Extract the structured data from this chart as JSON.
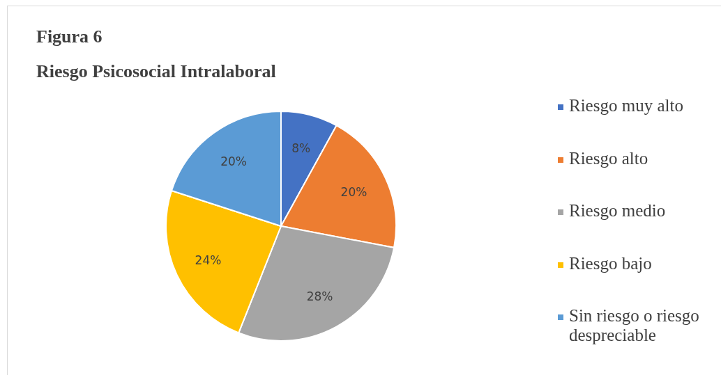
{
  "chart_data": {
    "type": "pie",
    "title": "Figura 6",
    "subtitle": "Riesgo Psicosocial Intralaboral",
    "categories": [
      "Riesgo muy alto",
      "Riesgo alto",
      "Riesgo medio",
      "Riesgo bajo",
      "Sin riesgo o riesgo despreciable"
    ],
    "values": [
      8,
      20,
      28,
      24,
      20
    ],
    "colors": [
      "#4472c4",
      "#ed7d31",
      "#a5a5a5",
      "#ffc000",
      "#5b9bd5"
    ],
    "value_labels": [
      "8%",
      "20%",
      "28%",
      "24%",
      "20%"
    ],
    "legend": "right"
  }
}
